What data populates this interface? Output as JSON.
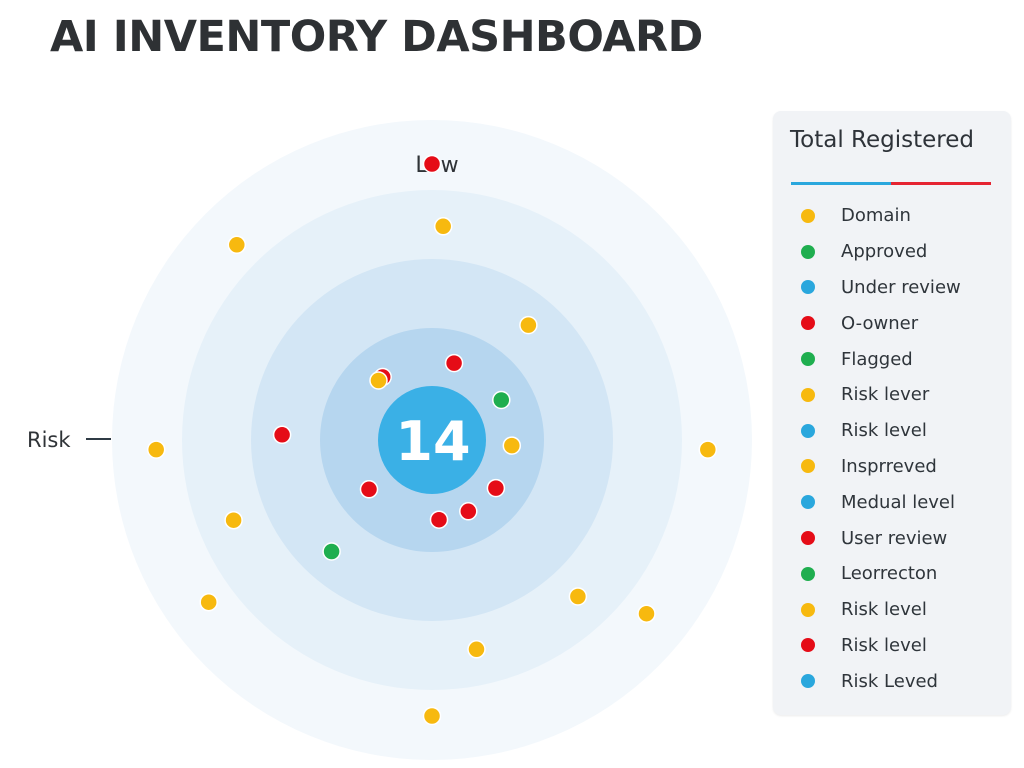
{
  "page": {
    "title": "AI INVENTORY DASHBOARD"
  },
  "chart_data": {
    "type": "scatter",
    "center_value": "14",
    "top_label": "Low",
    "left_label": "Risk",
    "colors": {
      "yellow": "#f7b90f",
      "red": "#e50c17",
      "green": "#1fae4f",
      "blue": "#2aa7dd",
      "ring_outer": "#f3f8fc",
      "ring_2": "#e6f1f9",
      "ring_3": "#d3e6f5",
      "ring_4": "#b6d6ef",
      "center": "#3ab0e6"
    },
    "points": [
      {
        "ring": 5,
        "angle": 0,
        "color": "red"
      },
      {
        "ring": 5,
        "angle": 315,
        "color": "yellow"
      },
      {
        "ring": 5,
        "angle": 268,
        "color": "yellow"
      },
      {
        "ring": 5,
        "angle": 92,
        "color": "yellow"
      },
      {
        "ring": 5,
        "angle": 234,
        "color": "yellow"
      },
      {
        "ring": 5,
        "angle": 129,
        "color": "yellow"
      },
      {
        "ring": 5,
        "angle": 180,
        "color": "yellow"
      },
      {
        "ring": 4,
        "angle": 3,
        "color": "yellow"
      },
      {
        "ring": 3,
        "angle": 40,
        "color": "yellow"
      },
      {
        "ring": 4,
        "angle": 248,
        "color": "yellow"
      },
      {
        "ring": 4,
        "angle": 168,
        "color": "yellow"
      },
      {
        "ring": 4,
        "angle": 137,
        "color": "yellow"
      },
      {
        "ring": 3,
        "angle": 272,
        "color": "red"
      },
      {
        "ring": 2,
        "angle": 16,
        "color": "red"
      },
      {
        "ring": 2,
        "angle": 322,
        "color": "red"
      },
      {
        "ring": 2,
        "angle": 60,
        "color": "green"
      },
      {
        "ring": 2,
        "angle": 318,
        "color": "yellow"
      },
      {
        "ring": 2,
        "angle": 94,
        "color": "yellow"
      },
      {
        "ring": 2,
        "angle": 232,
        "color": "red"
      },
      {
        "ring": 2,
        "angle": 127,
        "color": "red"
      },
      {
        "ring": 2,
        "angle": 175,
        "color": "red"
      },
      {
        "ring": 2,
        "angle": 153,
        "color": "red"
      },
      {
        "ring": 3,
        "angle": 222,
        "color": "green"
      }
    ]
  },
  "legend": {
    "title": "Total Registered",
    "items": [
      {
        "label": "Domain",
        "color": "#f7b90f"
      },
      {
        "label": "Approved",
        "color": "#1fae4f"
      },
      {
        "label": "Under review",
        "color": "#2aa7dd"
      },
      {
        "label": "O-owner",
        "color": "#e50c17"
      },
      {
        "label": "Flagged",
        "color": "#1fae4f"
      },
      {
        "label": "Risk lever",
        "color": "#f7b90f"
      },
      {
        "label": "Risk level",
        "color": "#2aa7dd"
      },
      {
        "label": "Insprreved",
        "color": "#f7b90f"
      },
      {
        "label": "Medual level",
        "color": "#2aa7dd"
      },
      {
        "label": "User review",
        "color": "#e50c17"
      },
      {
        "label": "Leorrecton",
        "color": "#1fae4f"
      },
      {
        "label": "Risk level",
        "color": "#f7b90f"
      },
      {
        "label": "Risk level",
        "color": "#e50c17"
      },
      {
        "label": "Risk Leved",
        "color": "#2aa7dd"
      }
    ]
  }
}
